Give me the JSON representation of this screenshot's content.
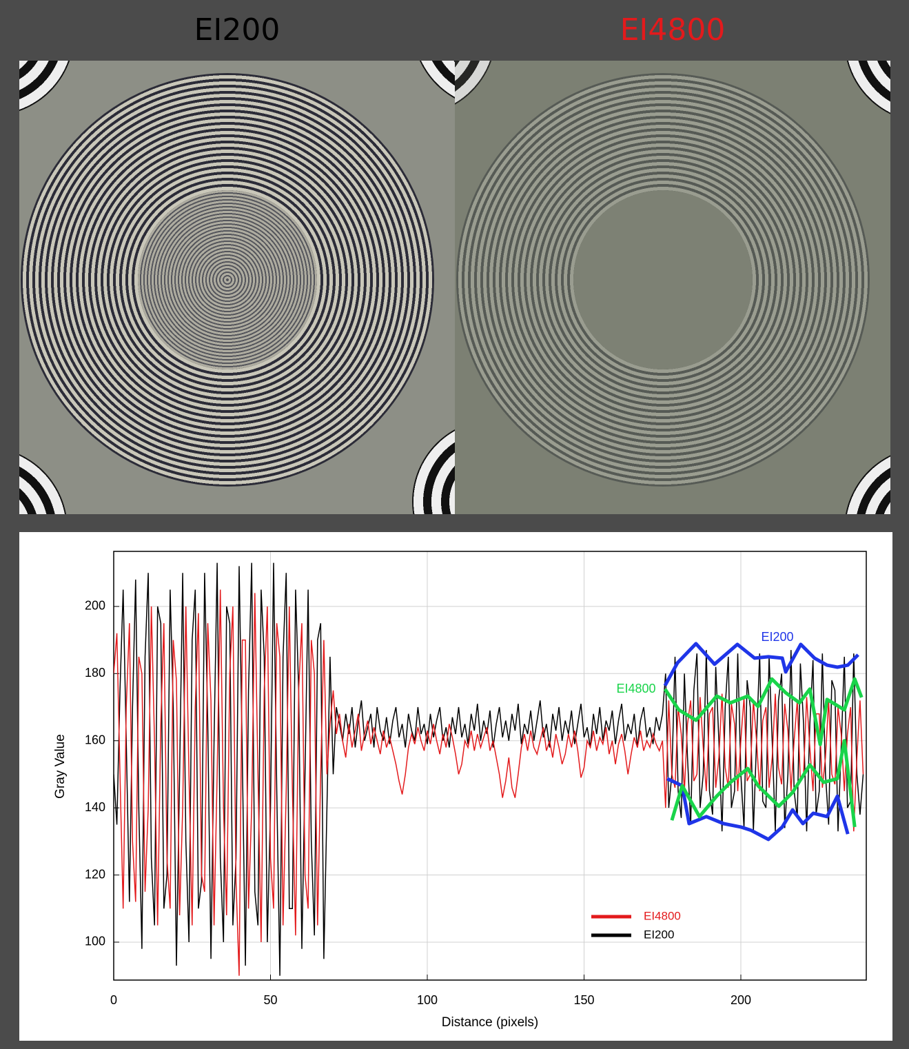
{
  "panels": [
    {
      "label": "EI200",
      "color": "#000000"
    },
    {
      "label": "EI4800",
      "color": "#e31a1c"
    }
  ],
  "chart_data": {
    "type": "line",
    "xlabel": "Distance (pixels)",
    "ylabel": "Gray Value",
    "xlim": [
      0,
      240
    ],
    "ylim": [
      88.7,
      216.4
    ],
    "xticks": [
      0,
      50,
      100,
      150,
      200
    ],
    "yticks": [
      100,
      120,
      140,
      160,
      180,
      200
    ],
    "grid": true,
    "legend": "lower right",
    "x": [
      0,
      1,
      2,
      3,
      4,
      5,
      6,
      7,
      8,
      9,
      10,
      11,
      12,
      13,
      14,
      15,
      16,
      17,
      18,
      19,
      20,
      21,
      22,
      23,
      24,
      25,
      26,
      27,
      28,
      29,
      30,
      31,
      32,
      33,
      34,
      35,
      36,
      37,
      38,
      39,
      40,
      41,
      42,
      43,
      44,
      45,
      46,
      47,
      48,
      49,
      50,
      51,
      52,
      53,
      54,
      55,
      56,
      57,
      58,
      59,
      60,
      61,
      62,
      63,
      64,
      65,
      66,
      67,
      68,
      69,
      70,
      71,
      72,
      73,
      74,
      75,
      76,
      77,
      78,
      79,
      80,
      81,
      82,
      83,
      84,
      85,
      86,
      87,
      88,
      89,
      90,
      91,
      92,
      93,
      94,
      95,
      96,
      97,
      98,
      99,
      100,
      101,
      102,
      103,
      104,
      105,
      106,
      107,
      108,
      109,
      110,
      111,
      112,
      113,
      114,
      115,
      116,
      117,
      118,
      119,
      120,
      121,
      122,
      123,
      124,
      125,
      126,
      127,
      128,
      129,
      130,
      131,
      132,
      133,
      134,
      135,
      136,
      137,
      138,
      139,
      140,
      141,
      142,
      143,
      144,
      145,
      146,
      147,
      148,
      149,
      150,
      151,
      152,
      153,
      154,
      155,
      156,
      157,
      158,
      159,
      160,
      161,
      162,
      163,
      164,
      165,
      166,
      167,
      168,
      169,
      170,
      171,
      172,
      173,
      174,
      175,
      176,
      177,
      178,
      179,
      180,
      181,
      182,
      183,
      184,
      185,
      186,
      187,
      188,
      189,
      190,
      191,
      192,
      193,
      194,
      195,
      196,
      197,
      198,
      199,
      200,
      201,
      202,
      203,
      204,
      205,
      206,
      207,
      208,
      209,
      210,
      211,
      212,
      213,
      214,
      215,
      216,
      217,
      218,
      219,
      220,
      221,
      222,
      223,
      224,
      225,
      226,
      227,
      228,
      229,
      230,
      231,
      232,
      233,
      234,
      235,
      236,
      237,
      238,
      239
    ],
    "series": [
      {
        "name": "EI4800",
        "color": "#e31a1c",
        "values": [
          180,
          192,
          150,
          110,
          170,
          195,
          130,
          112,
          185,
          180,
          115,
          140,
          200,
          160,
          105,
          165,
          195,
          125,
          110,
          190,
          178,
          108,
          140,
          200,
          150,
          105,
          170,
          198,
          120,
          115,
          195,
          172,
          105,
          150,
          205,
          140,
          108,
          180,
          200,
          118,
          90,
          190,
          190,
          110,
          140,
          204,
          150,
          100,
          175,
          200,
          125,
          110,
          195,
          185,
          105,
          145,
          200,
          145,
          102,
          175,
          195,
          120,
          110,
          190,
          180,
          105,
          150,
          190,
          150,
          165,
          175,
          162,
          168,
          160,
          155,
          165,
          158,
          163,
          168,
          157,
          162,
          166,
          159,
          164,
          160,
          156,
          163,
          158,
          161,
          157,
          153,
          148,
          144,
          150,
          158,
          162,
          159,
          164,
          160,
          157,
          163,
          159,
          165,
          160,
          156,
          162,
          158,
          165,
          161,
          156,
          150,
          153,
          160,
          158,
          163,
          157,
          162,
          158,
          161,
          164,
          157,
          160,
          155,
          150,
          143,
          148,
          155,
          146,
          143,
          150,
          158,
          162,
          157,
          163,
          158,
          156,
          160,
          164,
          157,
          160,
          155,
          162,
          158,
          153,
          156,
          162,
          158,
          163,
          157,
          149,
          152,
          160,
          158,
          163,
          157,
          161,
          159,
          164,
          156,
          160,
          153,
          159,
          162,
          157,
          150,
          156,
          161,
          158,
          163,
          157,
          160,
          158,
          162,
          159,
          157,
          160,
          140,
          172,
          150,
          146,
          170,
          162,
          145,
          165,
          172,
          148,
          150,
          173,
          158,
          145,
          168,
          170,
          146,
          155,
          174,
          152,
          146,
          171,
          165,
          145,
          160,
          173,
          148,
          150,
          172,
          160,
          145,
          166,
          170,
          146,
          155,
          174,
          152,
          147,
          171,
          163,
          145,
          160,
          172,
          148,
          150,
          173,
          158,
          145,
          168,
          168,
          146,
          155,
          172,
          150,
          147,
          170,
          162,
          145,
          162,
          170,
          133,
          155,
          172,
          150
        ]
      },
      {
        "name": "EI200",
        "color": "#000000",
        "values": [
          150,
          135,
          175,
          205,
          160,
          112,
          170,
          208,
          140,
          98,
          185,
          210,
          125,
          105,
          200,
          195,
          110,
          120,
          205,
          170,
          93,
          150,
          210,
          130,
          100,
          190,
          205,
          110,
          118,
          210,
          165,
          95,
          160,
          213,
          125,
          100,
          200,
          195,
          105,
          125,
          212,
          155,
          93,
          175,
          213,
          115,
          105,
          205,
          185,
          100,
          140,
          213,
          145,
          90,
          185,
          210,
          110,
          110,
          205,
          175,
          98,
          150,
          205,
          130,
          102,
          190,
          195,
          95,
          140,
          185,
          150,
          170,
          165,
          160,
          168,
          162,
          170,
          158,
          166,
          172,
          160,
          164,
          168,
          158,
          170,
          163,
          160,
          167,
          159,
          166,
          170,
          161,
          165,
          158,
          168,
          163,
          160,
          170,
          162,
          165,
          159,
          168,
          161,
          166,
          170,
          160,
          164,
          158,
          167,
          162,
          170,
          161,
          165,
          159,
          168,
          163,
          171,
          160,
          166,
          162,
          169,
          158,
          165,
          170,
          161,
          166,
          160,
          168,
          163,
          171,
          159,
          165,
          162,
          169,
          160,
          166,
          172,
          161,
          165,
          158,
          168,
          163,
          170,
          160,
          166,
          162,
          169,
          159,
          165,
          171,
          161,
          164,
          158,
          168,
          162,
          170,
          160,
          166,
          163,
          169,
          159,
          166,
          171,
          160,
          165,
          162,
          168,
          158,
          166,
          170,
          161,
          164,
          159,
          167,
          163,
          168,
          180,
          140,
          150,
          185,
          145,
          137,
          180,
          155,
          135,
          175,
          186,
          140,
          150,
          187,
          145,
          138,
          182,
          160,
          133,
          170,
          185,
          140,
          145,
          186,
          150,
          134,
          178,
          170,
          133,
          160,
          186,
          142,
          140,
          185,
          160,
          133,
          172,
          180,
          134,
          150,
          187,
          145,
          137,
          183,
          165,
          133,
          165,
          184,
          138,
          145,
          186,
          150,
          135,
          178,
          175,
          133,
          158,
          185,
          140,
          142,
          186,
          150,
          138,
          150
        ]
      }
    ],
    "envelopes": [
      {
        "color": "#1f35e8",
        "x": [
          175.8,
          179.8,
          185.7,
          191.6,
          198.9,
          204.4,
          208.8,
          213.2,
          214.3,
          219.1,
          223.5,
          227.5,
          230.8,
          234.1,
          237.4
        ],
        "values": [
          176.4,
          183.2,
          188.9,
          182.8,
          188.7,
          184.6,
          185,
          184.6,
          180.5,
          188.7,
          184.6,
          182.5,
          181.9,
          182.5,
          185.6
        ]
      },
      {
        "color": "#1f35e8",
        "x": [
          176.5,
          181.3,
          183.5,
          189,
          194.5,
          200,
          203.3,
          208.8,
          213.2,
          216.5,
          219.8,
          223.1,
          227.5,
          230.8,
          234.1
        ],
        "values": [
          148.7,
          146.6,
          135.3,
          137.4,
          135.3,
          134.3,
          133.3,
          130.6,
          134.3,
          139.4,
          135.3,
          138.4,
          137.4,
          143.5,
          132.2
        ]
      },
      {
        "color": "#19d44a",
        "x": [
          175.8,
          180.2,
          185.7,
          192.3,
          196.7,
          202.2,
          205.5,
          209.9,
          214.3,
          218.7,
          222,
          225.3,
          227.5,
          233,
          236.3,
          238.5
        ],
        "values": [
          175.4,
          169.2,
          166.1,
          173.3,
          171.3,
          173.3,
          170.2,
          178.4,
          174.3,
          171.3,
          175.4,
          158.9,
          172.3,
          169.2,
          178.4,
          172.9
        ]
      },
      {
        "color": "#19d44a",
        "x": [
          178,
          181.3,
          186.8,
          192.3,
          196.7,
          202.2,
          205.5,
          212.1,
          216.5,
          222,
          226.4,
          230.8,
          233,
          236.3
        ],
        "values": [
          136.3,
          146.6,
          137.4,
          143.5,
          147.6,
          151.7,
          146.6,
          140.5,
          144.6,
          152.8,
          147.6,
          148.7,
          160,
          134.3
        ]
      }
    ],
    "annotations": [
      {
        "text": "EI200",
        "color": "#1f35e8"
      },
      {
        "text": "EI4800",
        "color": "#19d44a"
      }
    ]
  }
}
